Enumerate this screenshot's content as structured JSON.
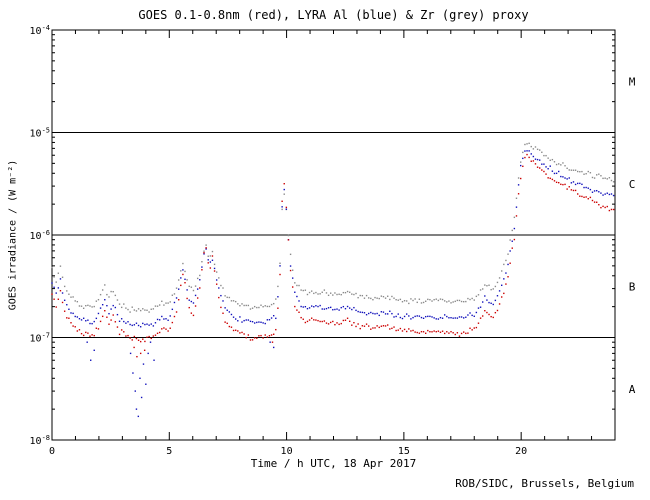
{
  "chart_data": {
    "type": "scatter",
    "title": "GOES 0.1-0.8nm (red), LYRA Al (blue) & Zr (grey) proxy",
    "xlabel": "Time / h UTC, 18 Apr 2017",
    "ylabel": "GOES irradiance / (W m⁻²)",
    "footer": "ROB/SIDC, Brussels, Belgium",
    "xlim": [
      0,
      24
    ],
    "ylim": [
      1e-08,
      0.0001
    ],
    "x_major_ticks": [
      0,
      5,
      10,
      15,
      20
    ],
    "x_minor_step": 1,
    "y_decades": [
      -4,
      -5,
      -6,
      -7,
      -8
    ],
    "hlines": [
      1e-05,
      1e-06,
      1e-07
    ],
    "flare_classes": [
      {
        "label": "M",
        "value": 3.16e-05
      },
      {
        "label": "C",
        "value": 3.16e-06
      },
      {
        "label": "B",
        "value": 3.16e-07
      },
      {
        "label": "A",
        "value": 3.16e-08
      }
    ],
    "series": [
      {
        "name": "LYRA Zr proxy",
        "color": "#8a8a8a",
        "keypoints": [
          [
            0.0,
            4.6e-07
          ],
          [
            0.2,
            3.4e-07
          ],
          [
            0.35,
            5e-07
          ],
          [
            0.55,
            3e-07
          ],
          [
            0.9,
            2.4e-07
          ],
          [
            1.3,
            2e-07
          ],
          [
            1.7,
            1.95e-07
          ],
          [
            2.0,
            2.3e-07
          ],
          [
            2.25,
            3.1e-07
          ],
          [
            2.45,
            2.4e-07
          ],
          [
            2.6,
            3e-07
          ],
          [
            2.85,
            2.1e-07
          ],
          [
            3.3,
            1.9e-07
          ],
          [
            3.8,
            1.8e-07
          ],
          [
            4.3,
            1.9e-07
          ],
          [
            4.7,
            2.2e-07
          ],
          [
            5.0,
            2.1e-07
          ],
          [
            5.35,
            3.2e-07
          ],
          [
            5.6,
            5.8e-07
          ],
          [
            5.8,
            3.2e-07
          ],
          [
            6.05,
            2.9e-07
          ],
          [
            6.3,
            4.2e-07
          ],
          [
            6.55,
            8.5e-07
          ],
          [
            6.7,
            5.6e-07
          ],
          [
            6.85,
            6.6e-07
          ],
          [
            7.05,
            3.9e-07
          ],
          [
            7.35,
            2.7e-07
          ],
          [
            7.8,
            2.2e-07
          ],
          [
            8.5,
            2e-07
          ],
          [
            9.2,
            2e-07
          ],
          [
            9.55,
            2.3e-07
          ],
          [
            9.7,
            4.2e-07
          ],
          [
            9.85,
            3e-06
          ],
          [
            10.0,
            1.6e-06
          ],
          [
            10.15,
            6.5e-07
          ],
          [
            10.35,
            3.4e-07
          ],
          [
            10.7,
            2.8e-07
          ],
          [
            11.2,
            2.8e-07
          ],
          [
            11.7,
            2.7e-07
          ],
          [
            12.2,
            2.6e-07
          ],
          [
            12.6,
            2.8e-07
          ],
          [
            13.0,
            2.55e-07
          ],
          [
            13.6,
            2.45e-07
          ],
          [
            14.1,
            2.5e-07
          ],
          [
            14.6,
            2.4e-07
          ],
          [
            15.2,
            2.3e-07
          ],
          [
            15.8,
            2.25e-07
          ],
          [
            16.4,
            2.3e-07
          ],
          [
            17.0,
            2.25e-07
          ],
          [
            17.6,
            2.25e-07
          ],
          [
            18.1,
            2.45e-07
          ],
          [
            18.45,
            3.3e-07
          ],
          [
            18.8,
            3e-07
          ],
          [
            19.1,
            4e-07
          ],
          [
            19.4,
            6e-07
          ],
          [
            19.7,
            1.4e-06
          ],
          [
            19.95,
            5e-06
          ],
          [
            20.2,
            8.2e-06
          ],
          [
            20.6,
            6.8e-06
          ],
          [
            21.1,
            5.7e-06
          ],
          [
            21.6,
            5e-06
          ],
          [
            22.1,
            4.5e-06
          ],
          [
            22.6,
            4.1e-06
          ],
          [
            23.1,
            3.8e-06
          ],
          [
            23.6,
            3.55e-06
          ],
          [
            24.0,
            3.4e-06
          ]
        ],
        "scatter": []
      },
      {
        "name": "LYRA Al proxy",
        "color": "#1111bb",
        "keypoints": [
          [
            0.0,
            3.4e-07
          ],
          [
            0.2,
            2.5e-07
          ],
          [
            0.35,
            3.8e-07
          ],
          [
            0.55,
            2.2e-07
          ],
          [
            0.9,
            1.7e-07
          ],
          [
            1.3,
            1.45e-07
          ],
          [
            1.7,
            1.4e-07
          ],
          [
            2.0,
            1.65e-07
          ],
          [
            2.25,
            2.3e-07
          ],
          [
            2.45,
            1.7e-07
          ],
          [
            2.6,
            2.2e-07
          ],
          [
            2.85,
            1.5e-07
          ],
          [
            3.3,
            1.35e-07
          ],
          [
            3.8,
            1.3e-07
          ],
          [
            4.3,
            1.35e-07
          ],
          [
            4.7,
            1.6e-07
          ],
          [
            5.0,
            1.5e-07
          ],
          [
            5.35,
            2.5e-07
          ],
          [
            5.6,
            5e-07
          ],
          [
            5.8,
            2.5e-07
          ],
          [
            6.05,
            2.2e-07
          ],
          [
            6.3,
            3.5e-07
          ],
          [
            6.55,
            8e-07
          ],
          [
            6.7,
            5e-07
          ],
          [
            6.85,
            6e-07
          ],
          [
            7.05,
            3.2e-07
          ],
          [
            7.35,
            2e-07
          ],
          [
            7.8,
            1.55e-07
          ],
          [
            8.5,
            1.4e-07
          ],
          [
            9.2,
            1.4e-07
          ],
          [
            9.55,
            1.6e-07
          ],
          [
            9.7,
            3.5e-07
          ],
          [
            9.85,
            3.6e-06
          ],
          [
            10.0,
            1.7e-06
          ],
          [
            10.15,
            5.5e-07
          ],
          [
            10.35,
            2.6e-07
          ],
          [
            10.7,
            2e-07
          ],
          [
            11.2,
            2e-07
          ],
          [
            11.7,
            1.9e-07
          ],
          [
            12.2,
            1.85e-07
          ],
          [
            12.6,
            2e-07
          ],
          [
            13.0,
            1.8e-07
          ],
          [
            13.6,
            1.7e-07
          ],
          [
            14.1,
            1.75e-07
          ],
          [
            14.6,
            1.65e-07
          ],
          [
            15.2,
            1.6e-07
          ],
          [
            15.8,
            1.55e-07
          ],
          [
            16.4,
            1.6e-07
          ],
          [
            17.0,
            1.55e-07
          ],
          [
            17.6,
            1.55e-07
          ],
          [
            18.1,
            1.7e-07
          ],
          [
            18.45,
            2.4e-07
          ],
          [
            18.8,
            2.1e-07
          ],
          [
            19.1,
            2.9e-07
          ],
          [
            19.4,
            4.5e-07
          ],
          [
            19.7,
            1.1e-06
          ],
          [
            19.95,
            4.2e-06
          ],
          [
            20.2,
            7e-06
          ],
          [
            20.6,
            5.6e-06
          ],
          [
            21.1,
            4.6e-06
          ],
          [
            21.6,
            3.9e-06
          ],
          [
            22.1,
            3.4e-06
          ],
          [
            22.6,
            3e-06
          ],
          [
            23.1,
            2.7e-06
          ],
          [
            23.6,
            2.5e-06
          ],
          [
            24.0,
            2.35e-06
          ]
        ],
        "scatter": [
          [
            1.5,
            9e-08
          ],
          [
            1.65,
            6e-08
          ],
          [
            1.8,
            7.5e-08
          ],
          [
            3.35,
            7e-08
          ],
          [
            3.45,
            4.5e-08
          ],
          [
            3.55,
            3e-08
          ],
          [
            3.6,
            2e-08
          ],
          [
            3.68,
            1.7e-08
          ],
          [
            3.75,
            4e-08
          ],
          [
            3.82,
            2.6e-08
          ],
          [
            3.9,
            5.5e-08
          ],
          [
            4.0,
            3.5e-08
          ],
          [
            4.1,
            7e-08
          ],
          [
            4.2,
            9e-08
          ],
          [
            4.35,
            6e-08
          ],
          [
            9.3,
            9e-08
          ],
          [
            9.45,
            8e-08
          ]
        ]
      },
      {
        "name": "GOES 0.1-0.8nm",
        "color": "#cc0000",
        "keypoints": [
          [
            0.0,
            2.6e-07
          ],
          [
            0.2,
            1.9e-07
          ],
          [
            0.35,
            3e-07
          ],
          [
            0.55,
            1.7e-07
          ],
          [
            0.9,
            1.3e-07
          ],
          [
            1.3,
            1.1e-07
          ],
          [
            1.7,
            1.05e-07
          ],
          [
            2.0,
            1.25e-07
          ],
          [
            2.25,
            1.8e-07
          ],
          [
            2.45,
            1.3e-07
          ],
          [
            2.6,
            1.7e-07
          ],
          [
            2.85,
            1.15e-07
          ],
          [
            3.3,
            1e-07
          ],
          [
            3.8,
            9.5e-08
          ],
          [
            4.3,
            1e-07
          ],
          [
            4.7,
            1.2e-07
          ],
          [
            5.0,
            1.15e-07
          ],
          [
            5.35,
            2e-07
          ],
          [
            5.6,
            4.5e-07
          ],
          [
            5.8,
            2e-07
          ],
          [
            6.05,
            1.7e-07
          ],
          [
            6.3,
            3e-07
          ],
          [
            6.55,
            8.5e-07
          ],
          [
            6.7,
            4.5e-07
          ],
          [
            6.85,
            6e-07
          ],
          [
            7.05,
            2.8e-07
          ],
          [
            7.35,
            1.5e-07
          ],
          [
            7.8,
            1.15e-07
          ],
          [
            8.5,
            1e-07
          ],
          [
            9.2,
            1e-07
          ],
          [
            9.55,
            1.2e-07
          ],
          [
            9.7,
            3e-07
          ],
          [
            9.85,
            4.2e-06
          ],
          [
            10.0,
            1.8e-06
          ],
          [
            10.15,
            5e-07
          ],
          [
            10.35,
            2e-07
          ],
          [
            10.7,
            1.5e-07
          ],
          [
            11.2,
            1.5e-07
          ],
          [
            11.7,
            1.4e-07
          ],
          [
            12.2,
            1.35e-07
          ],
          [
            12.6,
            1.5e-07
          ],
          [
            13.0,
            1.3e-07
          ],
          [
            13.6,
            1.25e-07
          ],
          [
            14.1,
            1.3e-07
          ],
          [
            14.6,
            1.2e-07
          ],
          [
            15.2,
            1.15e-07
          ],
          [
            15.8,
            1.1e-07
          ],
          [
            16.4,
            1.15e-07
          ],
          [
            17.0,
            1.1e-07
          ],
          [
            17.6,
            1.1e-07
          ],
          [
            18.1,
            1.25e-07
          ],
          [
            18.45,
            1.8e-07
          ],
          [
            18.8,
            1.6e-07
          ],
          [
            19.1,
            2.2e-07
          ],
          [
            19.4,
            3.5e-07
          ],
          [
            19.7,
            9e-07
          ],
          [
            19.95,
            3.5e-06
          ],
          [
            20.2,
            6e-06
          ],
          [
            20.6,
            4.8e-06
          ],
          [
            21.1,
            3.8e-06
          ],
          [
            21.6,
            3.2e-06
          ],
          [
            22.1,
            2.8e-06
          ],
          [
            22.6,
            2.4e-06
          ],
          [
            23.1,
            2.1e-06
          ],
          [
            23.6,
            1.85e-06
          ],
          [
            24.0,
            1.7e-06
          ]
        ],
        "scatter": [
          [
            3.5,
            8e-08
          ],
          [
            3.62,
            6.5e-08
          ],
          [
            3.78,
            7e-08
          ],
          [
            3.95,
            7.5e-08
          ],
          [
            9.4,
            9e-08
          ]
        ]
      }
    ]
  }
}
